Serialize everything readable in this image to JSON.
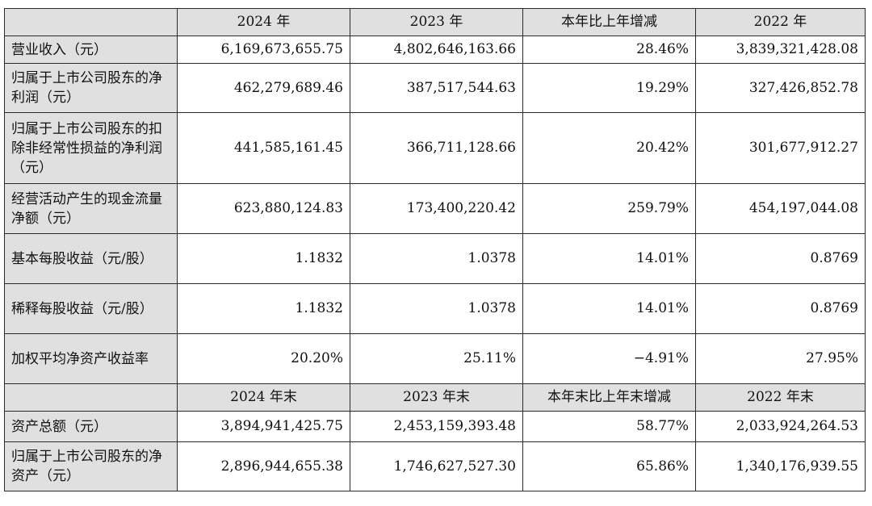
{
  "header1": [
    "",
    "2024 年",
    "2023 年",
    "本年比上年增减",
    "2022 年"
  ],
  "rows1": [
    {
      "label": "营业收入（元）",
      "values": [
        "6,169,673,655.75",
        "4,802,646,163.66",
        "28.46%",
        "3,839,321,428.08"
      ]
    },
    {
      "label": "归属于上市公司股东的净利润（元）",
      "values": [
        "462,279,689.46",
        "387,517,544.63",
        "19.29%",
        "327,426,852.78"
      ]
    },
    {
      "label": "归属于上市公司股东的扣除非经常性损益的净利润（元）",
      "values": [
        "441,585,161.45",
        "366,711,128.66",
        "20.42%",
        "301,677,912.27"
      ]
    },
    {
      "label": "经营活动产生的现金流量净额（元）",
      "values": [
        "623,880,124.83",
        "173,400,220.42",
        "259.79%",
        "454,197,044.08"
      ]
    },
    {
      "label": "基本每股收益（元/股）",
      "values": [
        "1.1832",
        "1.0378",
        "14.01%",
        "0.8769"
      ]
    },
    {
      "label": "稀释每股收益（元/股）",
      "values": [
        "1.1832",
        "1.0378",
        "14.01%",
        "0.8769"
      ]
    },
    {
      "label": "加权平均净资产收益率",
      "values": [
        "20.20%",
        "25.11%",
        "−4.91%",
        "27.95%"
      ]
    }
  ],
  "header2": [
    "",
    "2024 年末",
    "2023 年末",
    "本年末比上年末增减",
    "2022 年末"
  ],
  "rows2": [
    {
      "label": "资产总额（元）",
      "values": [
        "3,894,941,425.75",
        "2,453,159,393.48",
        "58.77%",
        "2,033,924,264.53"
      ]
    },
    {
      "label": "归属于上市公司股东的净资产（元）",
      "values": [
        "2,896,944,655.38",
        "1,746,627,527.30",
        "65.86%",
        "1,340,176,939.55"
      ]
    }
  ]
}
